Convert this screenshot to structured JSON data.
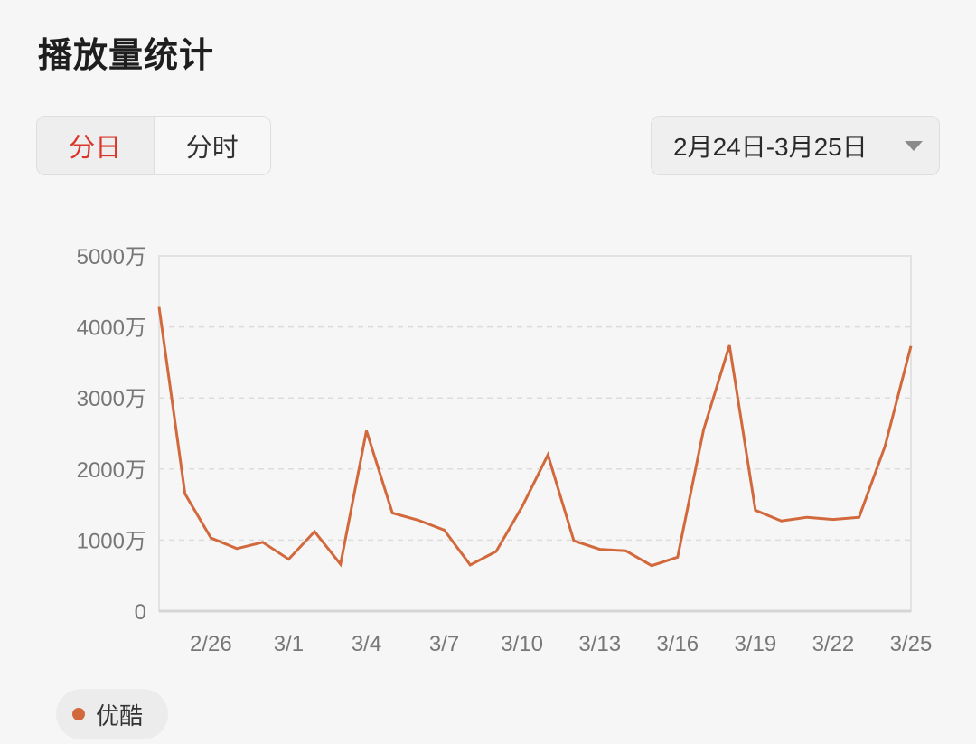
{
  "header": {
    "title": "播放量统计"
  },
  "granularity": {
    "tabs": [
      {
        "label": "分日",
        "active": true
      },
      {
        "label": "分时",
        "active": false
      }
    ]
  },
  "date_range": {
    "label": "2月24日-3月25日"
  },
  "colors": {
    "line": "#d2693c",
    "active_tab": "#d9352a"
  },
  "legend": {
    "label": "优酷"
  },
  "chart_data": {
    "type": "line",
    "title": "",
    "xlabel": "",
    "ylabel": "",
    "ylim": [
      0,
      50000000
    ],
    "y_ticks": [
      {
        "value": 0,
        "label": "0"
      },
      {
        "value": 10000000,
        "label": "1000万"
      },
      {
        "value": 20000000,
        "label": "2000万"
      },
      {
        "value": 30000000,
        "label": "3000万"
      },
      {
        "value": 40000000,
        "label": "4000万"
      },
      {
        "value": 50000000,
        "label": "5000万"
      }
    ],
    "x_tick_labels": [
      "2/26",
      "3/1",
      "3/4",
      "3/7",
      "3/10",
      "3/13",
      "3/16",
      "3/19",
      "3/22",
      "3/25"
    ],
    "grid": "horizontal dashed",
    "x": [
      "2/24",
      "2/25",
      "2/26",
      "2/27",
      "2/28",
      "3/1",
      "3/2",
      "3/3",
      "3/4",
      "3/5",
      "3/6",
      "3/7",
      "3/8",
      "3/9",
      "3/10",
      "3/11",
      "3/12",
      "3/13",
      "3/14",
      "3/15",
      "3/16",
      "3/17",
      "3/18",
      "3/19",
      "3/20",
      "3/21",
      "3/22",
      "3/23",
      "3/24",
      "3/25"
    ],
    "series": [
      {
        "name": "优酷",
        "values": [
          42800000,
          16500000,
          10300000,
          8800000,
          9700000,
          7300000,
          11200000,
          6600000,
          25400000,
          13800000,
          12800000,
          11400000,
          6500000,
          8400000,
          14700000,
          22000000,
          9900000,
          8700000,
          8500000,
          6400000,
          7600000,
          25500000,
          37400000,
          14200000,
          12700000,
          13200000,
          12900000,
          13200000,
          23200000,
          37300000
        ]
      }
    ]
  }
}
